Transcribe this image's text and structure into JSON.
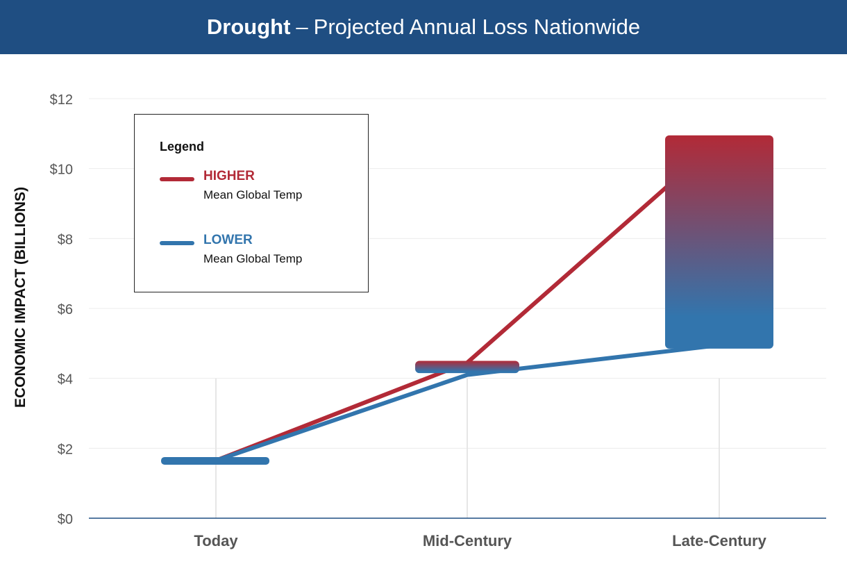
{
  "header": {
    "title_bold": "Drought",
    "title_sep": "–",
    "title_rest": "Projected Annual Loss Nationwide"
  },
  "legend": {
    "title": "Legend",
    "items": [
      {
        "label": "HIGHER",
        "desc": "Mean Global Temp",
        "color": "#b22a37"
      },
      {
        "label": "LOWER",
        "desc": "Mean Global Temp",
        "color": "#3275ad"
      }
    ]
  },
  "chart_data": {
    "type": "line",
    "title": "Drought – Projected Annual Loss Nationwide",
    "ylabel": "ECONOMIC IMPACT (BILLIONS)",
    "xlabel": "",
    "categories": [
      "Today",
      "Mid-Century",
      "Late-Century"
    ],
    "ylim": [
      0,
      12
    ],
    "yticks": [
      0,
      2,
      4,
      6,
      8,
      10,
      12
    ],
    "ytick_labels": [
      "$0",
      "$2",
      "$4",
      "$6",
      "$8",
      "$10",
      "$12"
    ],
    "grid": true,
    "legend_position": "top-left",
    "series": [
      {
        "name": "HIGHER",
        "values": [
          1.65,
          4.45,
          10.8
        ],
        "color": "#b22a37"
      },
      {
        "name": "LOWER",
        "values": [
          1.65,
          4.1,
          4.95
        ],
        "color": "#3275ad"
      }
    ],
    "ranges": [
      {
        "category": "Today",
        "low": 1.65,
        "high": 1.65
      },
      {
        "category": "Mid-Century",
        "low": 4.15,
        "high": 4.5
      },
      {
        "category": "Late-Century",
        "low": 4.85,
        "high": 10.95
      }
    ]
  }
}
